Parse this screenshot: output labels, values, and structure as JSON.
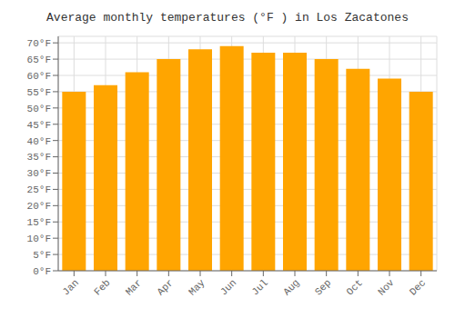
{
  "chart_data": {
    "type": "bar",
    "title": "Average monthly temperatures (°F ) in Los Zacatones",
    "categories": [
      "Jan",
      "Feb",
      "Mar",
      "Apr",
      "May",
      "Jun",
      "Jul",
      "Aug",
      "Sep",
      "Oct",
      "Nov",
      "Dec"
    ],
    "values": [
      55,
      57,
      61,
      65,
      68,
      69,
      67,
      67,
      65,
      62,
      59,
      55
    ],
    "color": "#FFA500",
    "ylim": [
      0,
      72
    ],
    "yticks": [
      {
        "value": 0,
        "label": "0°F"
      },
      {
        "value": 5,
        "label": "5°F"
      },
      {
        "value": 10,
        "label": "10°F"
      },
      {
        "value": 15,
        "label": "15°F"
      },
      {
        "value": 20,
        "label": "20°F"
      },
      {
        "value": 25,
        "label": "25°F"
      },
      {
        "value": 30,
        "label": "30°F"
      },
      {
        "value": 35,
        "label": "35°F"
      },
      {
        "value": 40,
        "label": "40°F"
      },
      {
        "value": 45,
        "label": "45°F"
      },
      {
        "value": 50,
        "label": "50°F"
      },
      {
        "value": 55,
        "label": "55°F"
      },
      {
        "value": 60,
        "label": "60°F"
      },
      {
        "value": 65,
        "label": "65°F"
      },
      {
        "value": 70,
        "label": "70°F"
      }
    ],
    "grid": true
  }
}
